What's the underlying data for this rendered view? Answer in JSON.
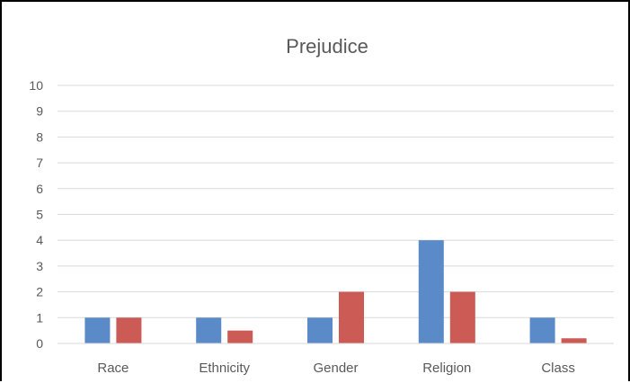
{
  "chart_data": {
    "type": "bar",
    "title": "Prejudice",
    "xlabel": "",
    "ylabel": "",
    "categories": [
      "Race",
      "Ethnicity",
      "Gender",
      "Religion",
      "Class"
    ],
    "series": [
      {
        "color": "#5b8ac8",
        "values": [
          1,
          1,
          1,
          4,
          1
        ]
      },
      {
        "color": "#cc5a55",
        "values": [
          1,
          0.5,
          2,
          2,
          0.2
        ]
      }
    ],
    "ylim": [
      0,
      10
    ],
    "yticks": [
      "0",
      "1",
      "2",
      "3",
      "4",
      "5",
      "6",
      "7",
      "8",
      "9",
      "10"
    ],
    "grid": true,
    "legend": "none"
  }
}
